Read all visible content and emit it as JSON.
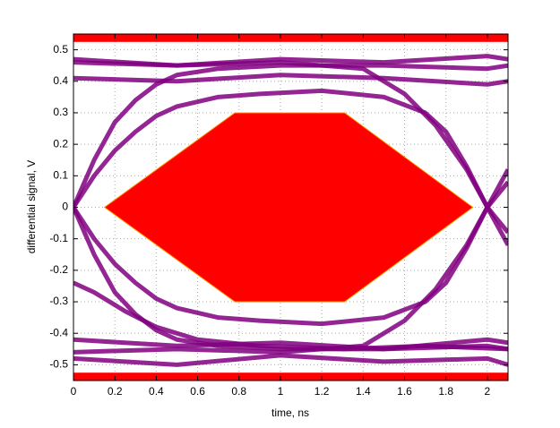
{
  "chart_data": {
    "type": "line",
    "xlabel": "time, ns",
    "ylabel": "differential signal, V",
    "xlim": [
      0,
      2.1
    ],
    "ylim": [
      -0.55,
      0.55
    ],
    "xticks": [
      0,
      0.2,
      0.4,
      0.6,
      0.8,
      1,
      1.2,
      1.4,
      1.6,
      1.8,
      2
    ],
    "yticks": [
      -0.5,
      -0.4,
      -0.3,
      -0.2,
      -0.1,
      0,
      0.1,
      0.2,
      0.3,
      0.4,
      0.5
    ],
    "grid": true,
    "mask": {
      "color": "#ff0000",
      "x": [
        0.15,
        0.78,
        1.31,
        1.93,
        1.31,
        0.78
      ],
      "y": [
        0,
        0.3,
        0.3,
        0,
        -0.3,
        -0.3
      ],
      "top": [
        0.525,
        0.55
      ],
      "bottom": [
        -0.55,
        -0.525
      ]
    },
    "series": [
      {
        "color": "#800080",
        "x": [
          0,
          0.5,
          1,
          1.5,
          2,
          2.1
        ],
        "values": [
          0.47,
          0.45,
          0.47,
          0.46,
          0.48,
          0.47
        ]
      },
      {
        "color": "#800080",
        "x": [
          0,
          0.5,
          1,
          1.5,
          2,
          2.1
        ],
        "values": [
          0.41,
          0.4,
          0.42,
          0.41,
          0.39,
          0.4
        ]
      },
      {
        "color": "#800080",
        "x": [
          0,
          0.5,
          1,
          1.5,
          2,
          2.1
        ],
        "values": [
          -0.42,
          -0.44,
          -0.43,
          -0.45,
          -0.42,
          -0.43
        ]
      },
      {
        "color": "#800080",
        "x": [
          0,
          0.5,
          1,
          1.5,
          2,
          2.1
        ],
        "values": [
          -0.48,
          -0.5,
          -0.47,
          -0.49,
          -0.48,
          -0.5
        ]
      },
      {
        "color": "#800080",
        "x": [
          0,
          0.1,
          0.2,
          0.3,
          0.4,
          0.5,
          0.7,
          1,
          1.5,
          2,
          2.1
        ],
        "values": [
          0,
          0.15,
          0.27,
          0.34,
          0.39,
          0.42,
          0.44,
          0.45,
          0.45,
          0.44,
          0.45
        ]
      },
      {
        "color": "#800080",
        "x": [
          0,
          0.1,
          0.2,
          0.3,
          0.4,
          0.5,
          0.7,
          1,
          1.5,
          2,
          2.1
        ],
        "values": [
          0,
          -0.15,
          -0.27,
          -0.34,
          -0.39,
          -0.42,
          -0.44,
          -0.45,
          -0.45,
          -0.44,
          -0.45
        ]
      },
      {
        "color": "#800080",
        "x": [
          0,
          0.1,
          0.2,
          0.3,
          0.4,
          0.5,
          0.7,
          0.9,
          1.2,
          1.5,
          1.7,
          1.8,
          1.9,
          2,
          2.1
        ],
        "values": [
          0,
          0.1,
          0.18,
          0.24,
          0.29,
          0.32,
          0.35,
          0.36,
          0.37,
          0.35,
          0.3,
          0.24,
          0.13,
          0,
          -0.08
        ]
      },
      {
        "color": "#800080",
        "x": [
          0,
          0.1,
          0.2,
          0.3,
          0.4,
          0.5,
          0.7,
          0.9,
          1.2,
          1.5,
          1.7,
          1.8,
          1.9,
          2,
          2.1
        ],
        "values": [
          0,
          -0.1,
          -0.18,
          -0.24,
          -0.29,
          -0.32,
          -0.35,
          -0.36,
          -0.37,
          -0.35,
          -0.3,
          -0.24,
          -0.13,
          0,
          0.08
        ]
      },
      {
        "color": "#800080",
        "x": [
          0,
          0.5,
          1,
          1.4,
          1.6,
          1.75,
          1.9,
          2,
          2.1
        ],
        "values": [
          0.46,
          0.45,
          0.46,
          0.44,
          0.36,
          0.26,
          0.12,
          0,
          -0.12
        ]
      },
      {
        "color": "#800080",
        "x": [
          0,
          0.5,
          1,
          1.4,
          1.6,
          1.75,
          1.9,
          2,
          2.1
        ],
        "values": [
          -0.46,
          -0.45,
          -0.46,
          -0.44,
          -0.36,
          -0.26,
          -0.12,
          0,
          0.12
        ]
      },
      {
        "color": "#800080",
        "x": [
          0,
          0.1,
          0.25,
          0.4,
          0.6,
          0.9,
          1.3,
          1.7,
          2.1
        ],
        "values": [
          -0.24,
          -0.27,
          -0.33,
          -0.38,
          -0.42,
          -0.44,
          -0.45,
          -0.44,
          -0.45
        ]
      }
    ]
  }
}
